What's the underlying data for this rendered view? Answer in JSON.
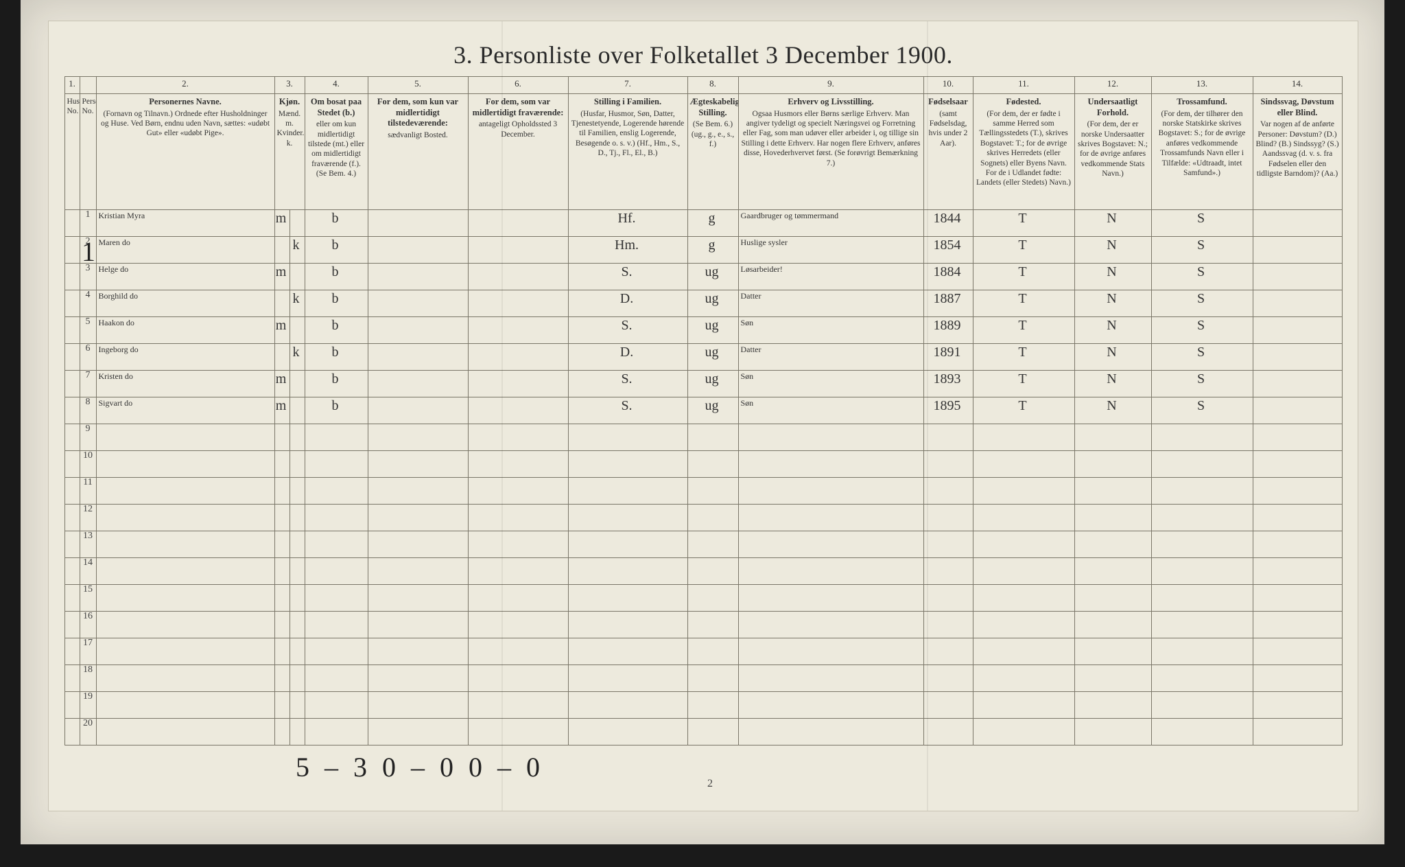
{
  "title": "3.  Personliste over Folketallet 3 December 1900.",
  "colnums": [
    "1.",
    "",
    "2.",
    "3.",
    "",
    "4.",
    "5.",
    "6.",
    "7.",
    "8.",
    "9.",
    "10.",
    "11.",
    "12.",
    "13.",
    "14."
  ],
  "headers": {
    "hh": "Husholdningens No.",
    "pn": "Personens No.",
    "name_t": "Personernes Navne.",
    "name": "(Fornavn og Tilnavn.)\nOrdnede efter Husholdninger og Huse.\nVed Børn, endnu uden Navn, sættes: «udøbt Gut» eller «udøbt Pige».",
    "sex_t": "Kjøn.",
    "sex_m": "Mænd. m.",
    "sex_k": "Kvinder. k.",
    "res_t": "Om bosat paa Stedet (b.)",
    "res": "eller om kun midlertidigt tilstede (mt.) eller om midlertidigt fraværende (f.). (Se Bem. 4.)",
    "away_t": "For dem, som kun var midlertidigt tilstedeværende:",
    "away": "sædvanligt Bosted.",
    "temp_t": "For dem, som var midlertidigt fraværende:",
    "temp": "antageligt Opholdssted 3 December.",
    "fam_t": "Stilling i Familien.",
    "fam": "(Husfar, Husmor, Søn, Datter, Tjenestetyende, Logerende hørende til Familien, enslig Logerende, Besøgende o. s. v.)\n(Hf., Hm., S., D., Tj., Fl., El., B.)",
    "mar_t": "Ægteskabelig Stilling.",
    "mar": "(Se Bem. 6.)\n(ug., g., e., s., f.)",
    "occ_t": "Erhverv og Livsstilling.",
    "occ": "Ogsaa Husmors eller Børns særlige Erhverv. Man angiver tydeligt og specielt Næringsvei og Forretning eller Fag, som man udøver eller arbeider i, og tillige sin Stilling i dette Erhverv. Har nogen flere Erhverv, anføres disse, Hovederhvervet først. (Se forøvrigt Bemærkning 7.)",
    "yr_t": "Fødselsaar",
    "yr": "(samt Fødselsdag, hvis under 2 Aar).",
    "bp_t": "Fødested.",
    "bp": "(For dem, der er fødte i samme Herred som Tællingsstedets (T.), skrives Bogstavet: T.; for de øvrige skrives Herredets (eller Sognets) eller Byens Navn. For de i Udlandet fødte: Landets (eller Stedets) Navn.)",
    "nat_t": "Undersaatligt Forhold.",
    "nat": "(For dem, der er norske Undersaatter skrives Bogstavet: N.; for de øvrige anføres vedkommende Stats Navn.)",
    "rel_t": "Trossamfund.",
    "rel": "(For dem, der tilhører den norske Statskirke skrives Bogstavet: S.; for de øvrige anføres vedkommende Trossamfunds Navn eller i Tilfælde: «Udtraadt, intet Samfund».)",
    "inf_t": "Sindssvag, Døvstum eller Blind.",
    "inf": "Var nogen af de anførte Personer: Døvstum? (D.) Blind? (B.) Sindssyg? (S.) Aandssvag (d. v. s. fra Fødselen eller den tidligste Barndom)? (Aa.)"
  },
  "rows": [
    {
      "pn": "1",
      "name": "Kristian    Myra",
      "m": "m",
      "k": "",
      "res": "b",
      "away": "",
      "temp": "",
      "fam": "Hf.",
      "mar": "g",
      "occ": "Gaardbruger og tømmermand",
      "yr": "1844",
      "bp": "T",
      "nat": "N",
      "rel": "S",
      "inf": ""
    },
    {
      "pn": "2",
      "name": "Maren        do",
      "m": "",
      "k": "k",
      "res": "b",
      "away": "",
      "temp": "",
      "fam": "Hm.",
      "mar": "g",
      "occ": "Huslige sysler",
      "yr": "1854",
      "bp": "T",
      "nat": "N",
      "rel": "S",
      "inf": ""
    },
    {
      "pn": "3",
      "name": "Helge        do",
      "m": "m",
      "k": "",
      "res": "b",
      "away": "",
      "temp": "",
      "fam": "S.",
      "mar": "ug",
      "occ": "Løsarbeider!",
      "yr": "1884",
      "bp": "T",
      "nat": "N",
      "rel": "S",
      "inf": ""
    },
    {
      "pn": "4",
      "name": "Borghild     do",
      "m": "",
      "k": "k",
      "res": "b",
      "away": "",
      "temp": "",
      "fam": "D.",
      "mar": "ug",
      "occ": "Datter",
      "yr": "1887",
      "bp": "T",
      "nat": "N",
      "rel": "S",
      "inf": ""
    },
    {
      "pn": "5",
      "name": "Haakon       do",
      "m": "m",
      "k": "",
      "res": "b",
      "away": "",
      "temp": "",
      "fam": "S.",
      "mar": "ug",
      "occ": "Søn",
      "yr": "1889",
      "bp": "T",
      "nat": "N",
      "rel": "S",
      "inf": ""
    },
    {
      "pn": "6",
      "name": "Ingeborg     do",
      "m": "",
      "k": "k",
      "res": "b",
      "away": "",
      "temp": "",
      "fam": "D.",
      "mar": "ug",
      "occ": "Datter",
      "yr": "1891",
      "bp": "T",
      "nat": "N",
      "rel": "S",
      "inf": ""
    },
    {
      "pn": "7",
      "name": "Kristen      do",
      "m": "m",
      "k": "",
      "res": "b",
      "away": "",
      "temp": "",
      "fam": "S.",
      "mar": "ug",
      "occ": "Søn",
      "yr": "1893",
      "bp": "T",
      "nat": "N",
      "rel": "S",
      "inf": ""
    },
    {
      "pn": "8",
      "name": "Sigvart      do",
      "m": "m",
      "k": "",
      "res": "b",
      "away": "",
      "temp": "",
      "fam": "S.",
      "mar": "ug",
      "occ": "Søn",
      "yr": "1895",
      "bp": "T",
      "nat": "N",
      "rel": "S",
      "inf": ""
    },
    {
      "pn": "9",
      "name": "",
      "m": "",
      "k": "",
      "res": "",
      "away": "",
      "temp": "",
      "fam": "",
      "mar": "",
      "occ": "",
      "yr": "",
      "bp": "",
      "nat": "",
      "rel": "",
      "inf": ""
    },
    {
      "pn": "10",
      "name": "",
      "m": "",
      "k": "",
      "res": "",
      "away": "",
      "temp": "",
      "fam": "",
      "mar": "",
      "occ": "",
      "yr": "",
      "bp": "",
      "nat": "",
      "rel": "",
      "inf": ""
    },
    {
      "pn": "11",
      "name": "",
      "m": "",
      "k": "",
      "res": "",
      "away": "",
      "temp": "",
      "fam": "",
      "mar": "",
      "occ": "",
      "yr": "",
      "bp": "",
      "nat": "",
      "rel": "",
      "inf": ""
    },
    {
      "pn": "12",
      "name": "",
      "m": "",
      "k": "",
      "res": "",
      "away": "",
      "temp": "",
      "fam": "",
      "mar": "",
      "occ": "",
      "yr": "",
      "bp": "",
      "nat": "",
      "rel": "",
      "inf": ""
    },
    {
      "pn": "13",
      "name": "",
      "m": "",
      "k": "",
      "res": "",
      "away": "",
      "temp": "",
      "fam": "",
      "mar": "",
      "occ": "",
      "yr": "",
      "bp": "",
      "nat": "",
      "rel": "",
      "inf": ""
    },
    {
      "pn": "14",
      "name": "",
      "m": "",
      "k": "",
      "res": "",
      "away": "",
      "temp": "",
      "fam": "",
      "mar": "",
      "occ": "",
      "yr": "",
      "bp": "",
      "nat": "",
      "rel": "",
      "inf": ""
    },
    {
      "pn": "15",
      "name": "",
      "m": "",
      "k": "",
      "res": "",
      "away": "",
      "temp": "",
      "fam": "",
      "mar": "",
      "occ": "",
      "yr": "",
      "bp": "",
      "nat": "",
      "rel": "",
      "inf": ""
    },
    {
      "pn": "16",
      "name": "",
      "m": "",
      "k": "",
      "res": "",
      "away": "",
      "temp": "",
      "fam": "",
      "mar": "",
      "occ": "",
      "yr": "",
      "bp": "",
      "nat": "",
      "rel": "",
      "inf": ""
    },
    {
      "pn": "17",
      "name": "",
      "m": "",
      "k": "",
      "res": "",
      "away": "",
      "temp": "",
      "fam": "",
      "mar": "",
      "occ": "",
      "yr": "",
      "bp": "",
      "nat": "",
      "rel": "",
      "inf": ""
    },
    {
      "pn": "18",
      "name": "",
      "m": "",
      "k": "",
      "res": "",
      "away": "",
      "temp": "",
      "fam": "",
      "mar": "",
      "occ": "",
      "yr": "",
      "bp": "",
      "nat": "",
      "rel": "",
      "inf": ""
    },
    {
      "pn": "19",
      "name": "",
      "m": "",
      "k": "",
      "res": "",
      "away": "",
      "temp": "",
      "fam": "",
      "mar": "",
      "occ": "",
      "yr": "",
      "bp": "",
      "nat": "",
      "rel": "",
      "inf": ""
    },
    {
      "pn": "20",
      "name": "",
      "m": "",
      "k": "",
      "res": "",
      "away": "",
      "temp": "",
      "fam": "",
      "mar": "",
      "occ": "",
      "yr": "",
      "bp": "",
      "nat": "",
      "rel": "",
      "inf": ""
    }
  ],
  "household_mark": "1",
  "footer_hand": "5 – 3   0 – 0   0 – 0",
  "page_num": "2",
  "colors": {
    "paper": "#edeadd",
    "border": "#7a7668",
    "ink_print": "#2a2a2a",
    "ink_hand": "#2b2b2b",
    "bg_dark": "#1a1a1a"
  }
}
